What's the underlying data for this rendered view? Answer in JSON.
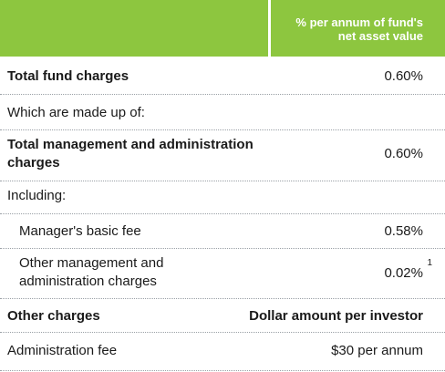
{
  "header": {
    "column_label": "% per annum of fund's net asset value"
  },
  "rows": [
    {
      "label": "Total fund charges",
      "value": "0.60%"
    },
    {
      "label": "Which are made up of:",
      "value": ""
    },
    {
      "label": "Total management and administration charges",
      "value": "0.60%"
    },
    {
      "label": "Including:",
      "value": ""
    },
    {
      "label": "Manager's basic fee",
      "value": "0.58%"
    },
    {
      "label": "Other management and administration charges",
      "value": "0.02%",
      "footnote": "1"
    },
    {
      "label": "Other charges",
      "value": "Dollar amount per investor"
    },
    {
      "label": "Administration fee",
      "value": "$30 per annum"
    }
  ],
  "colors": {
    "header_bg": "#8dc63f",
    "header_text": "#ffffff",
    "divider": "#9aa0a6"
  }
}
